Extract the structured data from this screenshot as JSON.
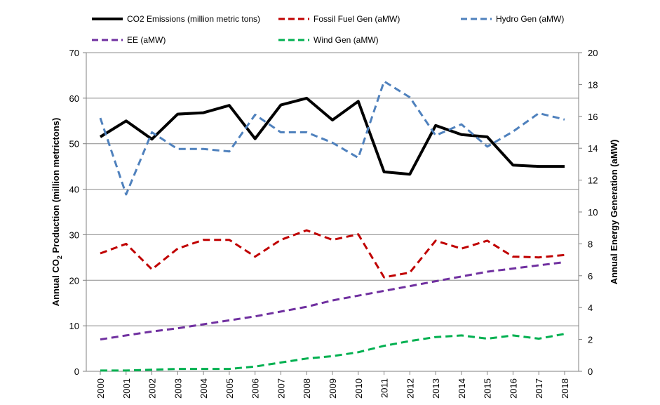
{
  "chart_data": {
    "type": "line",
    "x": [
      "2000",
      "2001",
      "2002",
      "2003",
      "2004",
      "2005",
      "2006",
      "2007",
      "2008",
      "2009",
      "2010",
      "2011",
      "2012",
      "2013",
      "2014",
      "2015",
      "2016",
      "2017",
      "2018"
    ],
    "left_axis": {
      "title_main": "Annual CO",
      "title_sub": "2",
      "title_rest": " Production (million metrictons)",
      "ylim": [
        0,
        70
      ],
      "ticks": [
        "0",
        "10",
        "20",
        "30",
        "40",
        "50",
        "60",
        "70"
      ]
    },
    "right_axis": {
      "title": "Annual Energy Generation (aMW)",
      "ylim": [
        0,
        20
      ],
      "ticks": [
        "0",
        "2",
        "4",
        "6",
        "8",
        "10",
        "12",
        "14",
        "16",
        "18",
        "20"
      ]
    },
    "grid": true,
    "legend_position": "top",
    "series": [
      {
        "name": "CO2 Emissions (million metric tons)",
        "axis": "left",
        "color": "#000000",
        "dash": "solid",
        "values": [
          51.5,
          55,
          51,
          56.5,
          56.8,
          58.4,
          51.1,
          58.5,
          60,
          55.2,
          59.3,
          43.8,
          43.3,
          54,
          52,
          51.5,
          45.3,
          45,
          45
        ]
      },
      {
        "name": "Fossil Fuel Gen (aMW)",
        "axis": "right",
        "color": "#c00000",
        "dash": "dashed",
        "values": [
          7.4,
          8.0,
          6.4,
          7.7,
          8.25,
          8.25,
          7.2,
          8.25,
          8.85,
          8.25,
          8.6,
          5.9,
          6.2,
          8.2,
          7.7,
          8.2,
          7.2,
          7.15,
          7.3
        ]
      },
      {
        "name": "Hydro Gen (aMW)",
        "axis": "right",
        "color": "#4f81bd",
        "dash": "dashed",
        "values": [
          15.9,
          11.1,
          15.0,
          13.95,
          13.95,
          13.8,
          16.1,
          15.0,
          15.0,
          14.35,
          13.4,
          18.2,
          17.2,
          14.8,
          15.5,
          14.1,
          15.05,
          16.2,
          15.8
        ]
      },
      {
        "name": "EE (aMW)",
        "axis": "right",
        "color": "#7030a0",
        "dash": "dashed",
        "values": [
          2.0,
          2.25,
          2.5,
          2.7,
          2.95,
          3.2,
          3.45,
          3.75,
          4.05,
          4.45,
          4.75,
          5.05,
          5.35,
          5.65,
          5.95,
          6.25,
          6.45,
          6.65,
          6.85
        ]
      },
      {
        "name": "Wind Gen (aMW)",
        "axis": "right",
        "color": "#00b050",
        "dash": "dashed",
        "values": [
          0.05,
          0.05,
          0.1,
          0.15,
          0.15,
          0.15,
          0.3,
          0.55,
          0.8,
          0.95,
          1.2,
          1.6,
          1.9,
          2.15,
          2.25,
          2.05,
          2.25,
          2.05,
          2.35
        ]
      }
    ]
  }
}
